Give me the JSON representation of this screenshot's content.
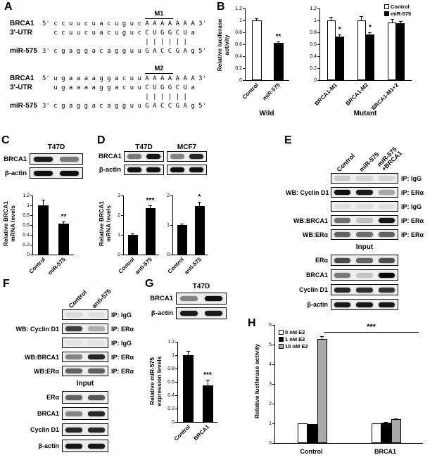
{
  "colors": {
    "white_bar": "#ffffff",
    "black_bar": "#000000",
    "gray_bar": "#a8a8a8"
  },
  "panels": {
    "A": {
      "label": "A",
      "blocks": [
        {
          "mark": "M1",
          "mark_indent": "                           ",
          "label_rows": [
            "BRCA1",
            "3'-UTR",
            "",
            "miR-575"
          ],
          "seq_rows": [
            "5' c c u u c u a c u g u c A A A A A A A 3'",
            "   c c u u c u a c u g u c C U G G C U a",
            "                           | | | | | |",
            "3' c g a g g a c a g g u u G A C C G A g 5'"
          ]
        },
        {
          "mark": "M2",
          "mark_indent": "                           ",
          "label_rows": [
            "BRCA1",
            "3'-UTR",
            "",
            "miR-575"
          ],
          "seq_rows": [
            "5' u g a a a a g g a c u u A A A A A A A 3'",
            "   u g a a a a g g a c u u C U G G C U a",
            "                           | | | | | |",
            "3' c g a g g a c a g g u u G A C C G A g 5'"
          ]
        }
      ]
    },
    "B": {
      "label": "B"
    },
    "C": {
      "label": "C"
    },
    "D": {
      "label": "D"
    },
    "E": {
      "label": "E"
    },
    "F": {
      "label": "F"
    },
    "G": {
      "label": "G"
    },
    "H": {
      "label": "H"
    }
  },
  "chart_data": [
    {
      "id": "b_wild",
      "type": "bar",
      "ylabel": "Relative luciferase activity",
      "categories": [
        "Control",
        "miR-575"
      ],
      "series": [
        {
          "name": "",
          "colors": [
            "#ffffff",
            "#000000"
          ],
          "values": [
            1.0,
            0.62
          ],
          "errors": [
            0.05,
            0.04
          ]
        }
      ],
      "sig": [
        {
          "cat": 1,
          "series": 0,
          "label": "**"
        }
      ],
      "ylim": [
        0,
        1.2
      ],
      "yticks": [
        0,
        0.2,
        0.4,
        0.6,
        0.8,
        1,
        1.2
      ],
      "caption": "Wild"
    },
    {
      "id": "b_mut",
      "type": "bar",
      "categories": [
        "BRCA1-M1",
        "BRCA1-M2",
        "BRCA1-M1+2"
      ],
      "series": [
        {
          "name": "Control",
          "color": "#ffffff",
          "values": [
            1.0,
            1.0,
            0.97
          ],
          "errors": [
            0.07,
            0.08,
            0.06
          ]
        },
        {
          "name": "miR-575",
          "color": "#000000",
          "values": [
            0.73,
            0.76,
            0.95
          ],
          "errors": [
            0.05,
            0.05,
            0.05
          ]
        }
      ],
      "sig": [
        {
          "cat": 0,
          "series": 1,
          "label": "*"
        },
        {
          "cat": 1,
          "series": 1,
          "label": "*"
        }
      ],
      "ylim": [
        0,
        1.2
      ],
      "yticks": [
        0,
        0.2,
        0.4,
        0.6,
        0.8,
        1,
        1.2
      ],
      "caption": "Mutant",
      "legend": [
        {
          "label": "Control",
          "color": "#ffffff"
        },
        {
          "label": "miR-575",
          "color": "#000000"
        }
      ]
    },
    {
      "id": "c_mrna",
      "type": "bar",
      "ylabel": "Relative BRCA1 mRNA levels",
      "categories": [
        "Control",
        "miR-575"
      ],
      "series": [
        {
          "name": "",
          "colors": [
            "#000000",
            "#000000"
          ],
          "values": [
            1.0,
            0.63
          ],
          "errors": [
            0.13,
            0.06
          ]
        }
      ],
      "sig": [
        {
          "cat": 1,
          "series": 0,
          "label": "**"
        }
      ],
      "ylim": [
        0,
        1.2
      ],
      "yticks": [
        0,
        0.2,
        0.4,
        0.6,
        0.8,
        1,
        1.2
      ]
    },
    {
      "id": "d_t47d",
      "type": "bar",
      "ylabel": "Relative BRCA1 mRNA levels",
      "categories": [
        "Control",
        "anti-575"
      ],
      "series": [
        {
          "name": "",
          "colors": [
            "#000000",
            "#000000"
          ],
          "values": [
            1.0,
            2.35
          ],
          "errors": [
            0.1,
            0.18
          ]
        }
      ],
      "sig": [
        {
          "cat": 1,
          "series": 0,
          "label": "***"
        }
      ],
      "ylim": [
        0,
        3
      ],
      "yticks": [
        0,
        1,
        2,
        3
      ]
    },
    {
      "id": "d_mcf7",
      "type": "bar",
      "categories": [
        "Control",
        "anti-575"
      ],
      "series": [
        {
          "name": "",
          "colors": [
            "#000000",
            "#000000"
          ],
          "values": [
            1.0,
            1.65
          ],
          "errors": [
            0.08,
            0.15
          ]
        }
      ],
      "sig": [
        {
          "cat": 1,
          "series": 0,
          "label": "*"
        }
      ],
      "ylim": [
        0,
        2
      ],
      "yticks": [
        0,
        1,
        2
      ]
    },
    {
      "id": "g_mir",
      "type": "bar",
      "ylabel": "Relative miR-575 expression levels",
      "categories": [
        "Control",
        "BRCA1"
      ],
      "series": [
        {
          "name": "",
          "colors": [
            "#000000",
            "#000000"
          ],
          "values": [
            1.0,
            0.55
          ],
          "errors": [
            0.07,
            0.09
          ]
        }
      ],
      "sig": [
        {
          "cat": 1,
          "series": 0,
          "label": "***"
        }
      ],
      "ylim": [
        0,
        1.2
      ],
      "yticks": [
        0,
        0.2,
        0.4,
        0.6,
        0.8,
        1,
        1.2
      ]
    },
    {
      "id": "h_luc",
      "type": "bar",
      "ylabel": "Relative luciferase activity",
      "categories": [
        "Control",
        "BRCA1"
      ],
      "series": [
        {
          "name": "0 nM E2",
          "color": "#ffffff",
          "values": [
            1.0,
            1.0
          ],
          "errors": [
            0.05,
            0.05
          ]
        },
        {
          "name": "1 nM E2",
          "color": "#000000",
          "values": [
            0.95,
            1.05
          ],
          "errors": [
            0.05,
            0.05
          ]
        },
        {
          "name": "10 nM E2",
          "color": "#a8a8a8",
          "values": [
            5.3,
            1.2
          ],
          "errors": [
            0.15,
            0.07
          ]
        }
      ],
      "bracket": {
        "y": 5.6,
        "x1": 0.33,
        "x2": 0.97,
        "label": "***"
      },
      "ylim": [
        0,
        6
      ],
      "yticks": [
        0,
        1,
        2,
        3,
        4,
        5,
        6
      ],
      "legend": [
        {
          "label": "0 nM E2",
          "color": "#ffffff"
        },
        {
          "label": "1 nM E2",
          "color": "#000000"
        },
        {
          "label": "10 nM E2",
          "color": "#a8a8a8"
        }
      ]
    }
  ],
  "blots": {
    "c": {
      "title": "T47D",
      "rows": [
        {
          "label": "BRCA1",
          "bands": [
            0.9,
            0.5
          ]
        },
        {
          "label": "β-actin",
          "bands": [
            0.95,
            0.95
          ]
        }
      ]
    },
    "d": {
      "row_labels": [
        "BRCA1",
        "β-actin"
      ],
      "boxes": [
        {
          "title": "T47D",
          "rows": [
            [
              0.5,
              0.92
            ],
            [
              0.95,
              0.95
            ]
          ]
        },
        {
          "title": "MCF7",
          "rows": [
            [
              0.45,
              0.85
            ],
            [
              0.95,
              0.95
            ]
          ]
        }
      ]
    },
    "g": {
      "title": "T47D",
      "rows": [
        {
          "label": "BRCA1",
          "bands": [
            0.45,
            0.95
          ]
        },
        {
          "label": "β-actin",
          "bands": [
            0.9,
            0.9
          ]
        }
      ]
    },
    "e": {
      "lane_headers": [
        "Control",
        "miR-575",
        "miR-575\n+BRCA1"
      ],
      "ip_rows": [
        {
          "left": "",
          "right": "IP: IgG",
          "bands": [
            0.15,
            0.1,
            0.1
          ]
        },
        {
          "left": "WB: Cyclin D1",
          "right": "IP: ERα",
          "bands": [
            0.95,
            0.9,
            0.3
          ]
        },
        {
          "left": "",
          "right": "IP: IgG",
          "bands": [
            0.06,
            0.06,
            0.06
          ]
        },
        {
          "left": "WB:BRCA1",
          "right": "IP: ERα",
          "bands": [
            0.55,
            0.2,
            0.92
          ]
        },
        {
          "left": "WB:ERα",
          "right": "IP: ERα",
          "bands": [
            0.6,
            0.55,
            0.6
          ]
        }
      ],
      "input_label": "Input",
      "input_rows": [
        {
          "left": "ERα",
          "bands": [
            0.7,
            0.6,
            0.68
          ]
        },
        {
          "left": "BRCA1",
          "bands": [
            0.5,
            0.18,
            1.0
          ]
        },
        {
          "left": "Cyclin D1",
          "bands": [
            0.85,
            0.82,
            0.8
          ]
        },
        {
          "left": "β-actin",
          "bands": [
            0.92,
            0.92,
            0.92
          ]
        }
      ]
    },
    "f": {
      "lane_headers": [
        "Control",
        "anti-575"
      ],
      "ip_rows": [
        {
          "left": "",
          "right": "IP: IgG",
          "bands": [
            0.08,
            0.06
          ]
        },
        {
          "left": "WB: Cyclin D1",
          "right": "IP: ERα",
          "bands": [
            0.75,
            0.28
          ]
        },
        {
          "left": "",
          "right": "IP: IgG",
          "bands": [
            0.05,
            0.05
          ]
        },
        {
          "left": "WB:BRCA1",
          "right": "IP: ERα",
          "bands": [
            0.45,
            0.85
          ]
        },
        {
          "left": "WB:ERα",
          "right": "IP: ERα",
          "bands": [
            0.6,
            0.62
          ]
        }
      ],
      "input_label": "Input",
      "input_rows": [
        {
          "left": "ERα",
          "bands": [
            0.6,
            0.66
          ]
        },
        {
          "left": "BRCA1",
          "bands": [
            0.45,
            0.85
          ]
        },
        {
          "left": "Cyclin D1",
          "bands": [
            0.85,
            0.85
          ]
        },
        {
          "left": "β-actin",
          "bands": [
            0.92,
            0.92
          ]
        }
      ]
    }
  }
}
